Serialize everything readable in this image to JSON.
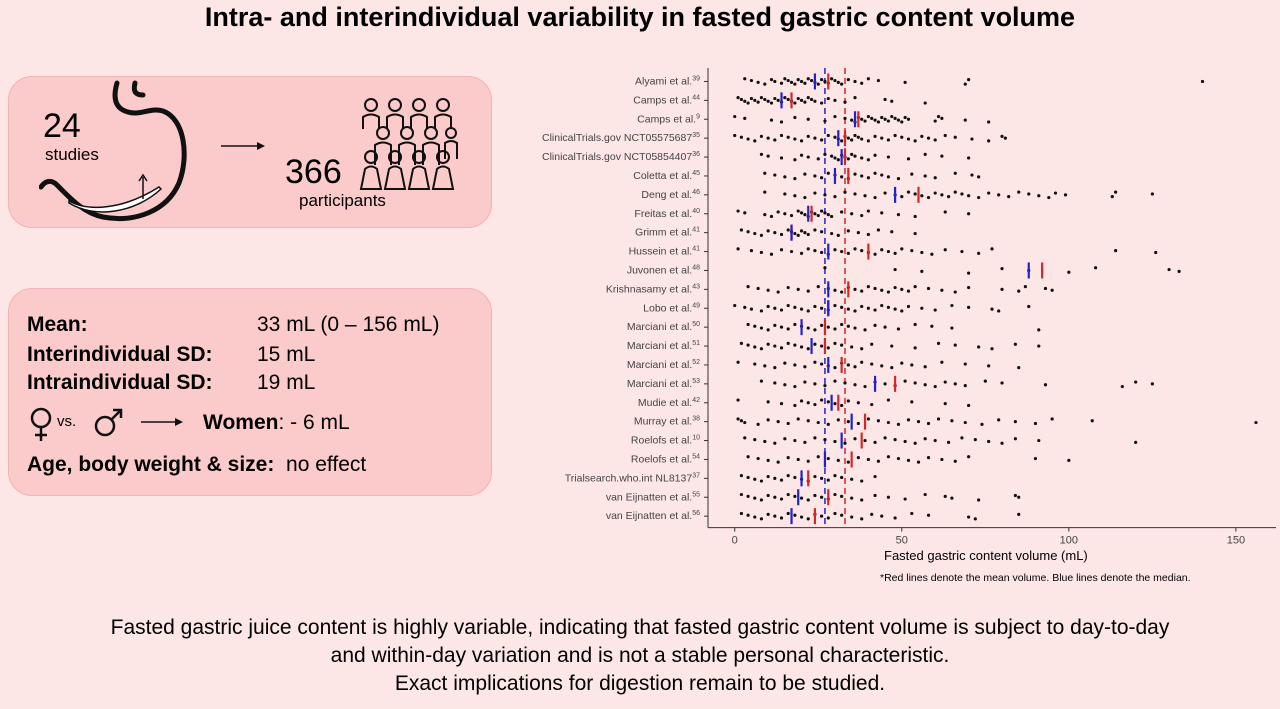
{
  "title": "Intra- and interindividual variability in fasted gastric content volume",
  "summary": {
    "studies_count": "24",
    "studies_label": "studies",
    "participants_count": "366",
    "participants_label": "participants"
  },
  "stats": {
    "mean_label": "Mean:",
    "mean_value": "33 mL (0 – 156 mL)",
    "inter_label": "Interindividual SD:",
    "inter_value": "15 mL",
    "intra_label": "Intraindividual SD:",
    "intra_value": "19 mL",
    "sex_vs": "vs.",
    "sex_women_label": "Women",
    "sex_women_value": ":  - 6 mL",
    "age_label": "Age, body weight & size:",
    "age_value": "no effect"
  },
  "colors": {
    "background": "#fde6e6",
    "card": "#fbcaca",
    "mean_line": "#d62728",
    "median_line": "#2222cc",
    "point": "#111111"
  },
  "footer": {
    "line1": "Fasted gastric juice content is highly variable, indicating that fasted gastric content volume is subject to day-to-day",
    "line2": "and within-day variation and is not a stable personal characteristic.",
    "line3": "Exact implications for digestion remain to be studied."
  },
  "chart_data": {
    "type": "scatter",
    "xlabel": "Fasted gastric content volume (mL)",
    "xlim": [
      -8,
      162
    ],
    "xticks": [
      0,
      50,
      100,
      150
    ],
    "note": "*Red lines denote the mean volume. Blue lines denote the median.",
    "overall_mean": 33,
    "overall_median": 27,
    "studies": [
      {
        "name": "Alyami et al.",
        "ref": "39",
        "mean": 28,
        "median": 24,
        "values": [
          3,
          5,
          7,
          9,
          11,
          12,
          14,
          15,
          16,
          17,
          18,
          19,
          20,
          21,
          22,
          23,
          24,
          25,
          26,
          27,
          28,
          29,
          30,
          31,
          32,
          34,
          36,
          38,
          40,
          43,
          51,
          69,
          70,
          140
        ]
      },
      {
        "name": "Camps et al.",
        "ref": "44",
        "mean": 17,
        "median": 14,
        "values": [
          1,
          2,
          3,
          4,
          5,
          6,
          7,
          8,
          9,
          10,
          11,
          12,
          13,
          14,
          15,
          16,
          17,
          18,
          19,
          20,
          21,
          22,
          23,
          24,
          26,
          28,
          30,
          33,
          36,
          45,
          47,
          57
        ]
      },
      {
        "name": "Camps et al.",
        "ref": "9",
        "mean": 37,
        "median": 36,
        "values": [
          0,
          3,
          11,
          14,
          18,
          22,
          27,
          30,
          33,
          35,
          36,
          37,
          38,
          39,
          40,
          41,
          42,
          43,
          44,
          45,
          46,
          47,
          48,
          49,
          50,
          51,
          52,
          60,
          61,
          62,
          69,
          76
        ]
      },
      {
        "name": "ClinicalTrials.gov NCT05575687",
        "ref": "35",
        "mean": 33,
        "median": 31,
        "values": [
          0,
          2,
          4,
          6,
          8,
          10,
          12,
          14,
          16,
          18,
          20,
          22,
          24,
          26,
          28,
          30,
          31,
          32,
          33,
          34,
          35,
          36,
          37,
          38,
          40,
          42,
          44,
          46,
          48,
          50,
          52,
          54,
          56,
          58,
          60,
          63,
          66,
          71,
          76,
          80,
          81
        ]
      },
      {
        "name": "ClinicalTrials.gov NCT05854407",
        "ref": "36",
        "mean": 33,
        "median": 32,
        "values": [
          8,
          10,
          14,
          18,
          20,
          22,
          25,
          27,
          29,
          30,
          31,
          32,
          33,
          34,
          35,
          36,
          38,
          40,
          42,
          46,
          52,
          57,
          62,
          70
        ]
      },
      {
        "name": "Coletta et al.",
        "ref": "45",
        "mean": 34,
        "median": 30,
        "values": [
          9,
          12,
          15,
          18,
          21,
          24,
          26,
          28,
          30,
          32,
          34,
          36,
          38,
          40,
          42,
          44,
          46,
          49,
          53,
          57,
          60,
          66,
          71,
          73
        ]
      },
      {
        "name": "Deng et al.",
        "ref": "46",
        "mean": 55,
        "median": 48,
        "values": [
          9,
          15,
          18,
          21,
          24,
          27,
          30,
          33,
          36,
          39,
          42,
          45,
          48,
          50,
          52,
          54,
          56,
          58,
          60,
          62,
          64,
          66,
          68,
          70,
          73,
          76,
          79,
          82,
          85,
          88,
          91,
          94,
          96,
          99,
          113,
          114,
          125
        ]
      },
      {
        "name": "Freitas et al.",
        "ref": "40",
        "mean": 23,
        "median": 22,
        "values": [
          1,
          3,
          9,
          11,
          13,
          15,
          17,
          19,
          20,
          21,
          22,
          23,
          24,
          25,
          26,
          27,
          28,
          29,
          32,
          35,
          38,
          40,
          44,
          49,
          54,
          63,
          70
        ]
      },
      {
        "name": "Grimm et al.",
        "ref": "41",
        "mean": 17,
        "median": 17,
        "values": [
          2,
          4,
          6,
          8,
          10,
          12,
          14,
          16,
          17,
          18,
          19,
          20,
          21,
          22,
          24,
          26,
          29,
          31,
          34,
          37,
          40,
          43,
          47,
          54
        ]
      },
      {
        "name": "Hussein et al.",
        "ref": "41",
        "mean": 40,
        "median": 28,
        "values": [
          1,
          5,
          8,
          11,
          14,
          17,
          20,
          22,
          24,
          26,
          28,
          30,
          32,
          34,
          36,
          38,
          40,
          42,
          44,
          46,
          48,
          50,
          53,
          56,
          59,
          63,
          68,
          73,
          77,
          114,
          126
        ]
      },
      {
        "name": "Juvonen et al.",
        "ref": "48",
        "mean": 92,
        "median": 88,
        "values": [
          27,
          48,
          56,
          70,
          80,
          88,
          100,
          108,
          130,
          133
        ]
      },
      {
        "name": "Krishnasamy et al.",
        "ref": "43",
        "mean": 34,
        "median": 28,
        "values": [
          4,
          7,
          10,
          13,
          16,
          19,
          22,
          25,
          28,
          30,
          32,
          34,
          36,
          38,
          40,
          42,
          44,
          46,
          48,
          50,
          52,
          54,
          58,
          62,
          66,
          70,
          80,
          85,
          87,
          93,
          95
        ]
      },
      {
        "name": "Lobo et al.",
        "ref": "49",
        "mean": 28,
        "median": 28,
        "values": [
          0,
          3,
          5,
          8,
          10,
          12,
          14,
          16,
          18,
          20,
          22,
          24,
          26,
          28,
          30,
          32,
          34,
          36,
          38,
          40,
          42,
          44,
          46,
          48,
          50,
          52,
          56,
          60,
          65,
          70,
          77,
          79,
          88
        ]
      },
      {
        "name": "Marciani et al.",
        "ref": "50",
        "mean": 27,
        "median": 20,
        "values": [
          4,
          6,
          8,
          10,
          12,
          14,
          16,
          18,
          20,
          22,
          24,
          26,
          28,
          30,
          32,
          34,
          36,
          39,
          42,
          45,
          49,
          54,
          59,
          65,
          91
        ]
      },
      {
        "name": "Marciani et al.",
        "ref": "51",
        "mean": 27,
        "median": 23,
        "values": [
          2,
          4,
          6,
          8,
          10,
          12,
          14,
          16,
          18,
          20,
          22,
          24,
          26,
          28,
          30,
          32,
          35,
          38,
          41,
          47,
          54,
          61,
          66,
          73,
          77,
          84,
          91
        ]
      },
      {
        "name": "Marciani et al.",
        "ref": "52",
        "mean": 32,
        "median": 28,
        "values": [
          1,
          6,
          9,
          12,
          15,
          18,
          21,
          24,
          26,
          28,
          30,
          32,
          34,
          36,
          38,
          41,
          44,
          47,
          50,
          53,
          57,
          62,
          69,
          76,
          85
        ]
      },
      {
        "name": "Marciani et al.",
        "ref": "53",
        "mean": 48,
        "median": 42,
        "values": [
          8,
          12,
          15,
          18,
          21,
          24,
          27,
          30,
          33,
          36,
          39,
          42,
          45,
          48,
          51,
          54,
          57,
          60,
          63,
          66,
          69,
          75,
          80,
          93,
          116,
          120,
          125
        ]
      },
      {
        "name": "Mudie et al.",
        "ref": "42",
        "mean": 31,
        "median": 29,
        "values": [
          1,
          10,
          14,
          18,
          20,
          22,
          24,
          26,
          28,
          30,
          32,
          34,
          37,
          41,
          46,
          53,
          63,
          70
        ]
      },
      {
        "name": "Murray et al.",
        "ref": "38",
        "mean": 39,
        "median": 35,
        "values": [
          1,
          2,
          3,
          7,
          10,
          13,
          16,
          19,
          22,
          25,
          28,
          31,
          34,
          37,
          40,
          43,
          46,
          49,
          52,
          55,
          58,
          61,
          65,
          69,
          74,
          79,
          84,
          90,
          95,
          107,
          156
        ]
      },
      {
        "name": "Roelofs et al.",
        "ref": "10",
        "mean": 38,
        "median": 32,
        "values": [
          3,
          6,
          9,
          12,
          15,
          18,
          21,
          24,
          27,
          30,
          33,
          36,
          39,
          42,
          45,
          48,
          51,
          54,
          57,
          60,
          64,
          68,
          72,
          76,
          80,
          84,
          91,
          120
        ]
      },
      {
        "name": "Roelofs et al.",
        "ref": "54",
        "mean": 35,
        "median": 27,
        "values": [
          4,
          7,
          10,
          13,
          16,
          19,
          22,
          25,
          28,
          31,
          34,
          37,
          40,
          43,
          46,
          49,
          52,
          55,
          58,
          62,
          66,
          70,
          90,
          100
        ]
      },
      {
        "name": "Trialsearch.who.int NL8137",
        "ref": "37",
        "mean": 22,
        "median": 20,
        "values": [
          2,
          4,
          6,
          8,
          10,
          12,
          14,
          16,
          18,
          20,
          22,
          24,
          26,
          28,
          30,
          32,
          35,
          38,
          42
        ]
      },
      {
        "name": "van Eijnatten et al.",
        "ref": "55",
        "mean": 28,
        "median": 19,
        "values": [
          2,
          4,
          6,
          8,
          10,
          12,
          14,
          16,
          18,
          20,
          22,
          24,
          26,
          28,
          30,
          32,
          35,
          38,
          42,
          46,
          51,
          57,
          63,
          65,
          73,
          84,
          85
        ]
      },
      {
        "name": "van Eijnatten et al.",
        "ref": "56",
        "mean": 24,
        "median": 17,
        "values": [
          2,
          4,
          6,
          8,
          10,
          12,
          14,
          16,
          18,
          20,
          22,
          24,
          26,
          28,
          30,
          32,
          35,
          38,
          41,
          44,
          48,
          53,
          58,
          70,
          72,
          85
        ]
      }
    ]
  }
}
